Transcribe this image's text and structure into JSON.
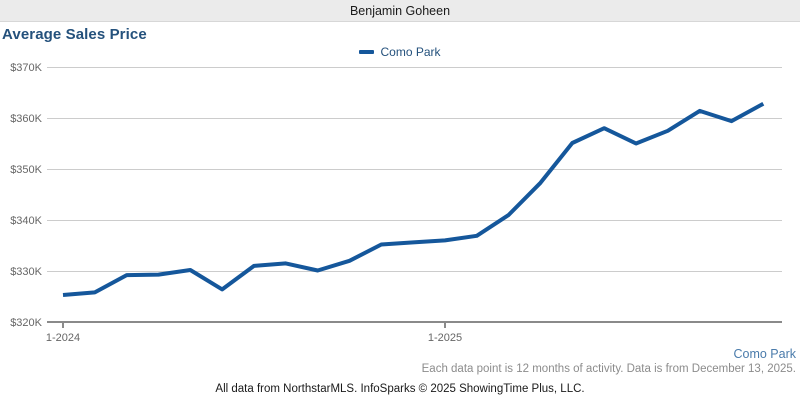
{
  "header": {
    "title": "Benjamin Goheen"
  },
  "chart": {
    "title": "Average Sales Price"
  },
  "legend": {
    "label": "Como Park"
  },
  "footnotes": {
    "series_label": "Como Park",
    "note": "Each data point is 12 months of activity. Data is from December 13, 2025.",
    "attribution": "All data from NorthstarMLS. InfoSparks © 2025 ShowingTime Plus, LLC."
  },
  "colors": {
    "series_line": "#15579b",
    "title_text": "#24517c",
    "legend_text": "#24517c",
    "series_footnote_text": "#4a7bab",
    "note_text": "#8c8c8c",
    "header_bg": "#ebebeb",
    "grid_line": "#cccccc",
    "axis_line": "#8a8a8a",
    "tick_label": "#666666"
  },
  "chart_data": {
    "type": "line",
    "title": "Average Sales Price",
    "x": [
      "1-2024",
      "2-2024",
      "3-2024",
      "4-2024",
      "5-2024",
      "6-2024",
      "7-2024",
      "8-2024",
      "9-2024",
      "10-2024",
      "11-2024",
      "12-2024",
      "1-2025",
      "2-2025",
      "3-2025",
      "4-2025",
      "5-2025",
      "6-2025",
      "7-2025",
      "8-2025",
      "9-2025",
      "10-2025",
      "11-2025"
    ],
    "series": [
      {
        "name": "Como Park",
        "color": "#15579b",
        "values": [
          325300,
          325800,
          329200,
          329300,
          330200,
          326400,
          331000,
          331500,
          330100,
          332000,
          335200,
          335600,
          336000,
          336900,
          341000,
          347300,
          355100,
          358000,
          355000,
          357500,
          361400,
          359400,
          362800
        ]
      }
    ],
    "ylim": [
      320000,
      370000
    ],
    "y_tick_values": [
      320000,
      330000,
      340000,
      350000,
      360000,
      370000
    ],
    "y_tick_labels": [
      "$320K",
      "$330K",
      "$340K",
      "$350K",
      "$360K",
      "$370K"
    ],
    "x_tick_indices": [
      0,
      12
    ],
    "x_tick_labels": [
      "1-2024",
      "1-2025"
    ],
    "grid": true,
    "legend_position": "top-center"
  }
}
